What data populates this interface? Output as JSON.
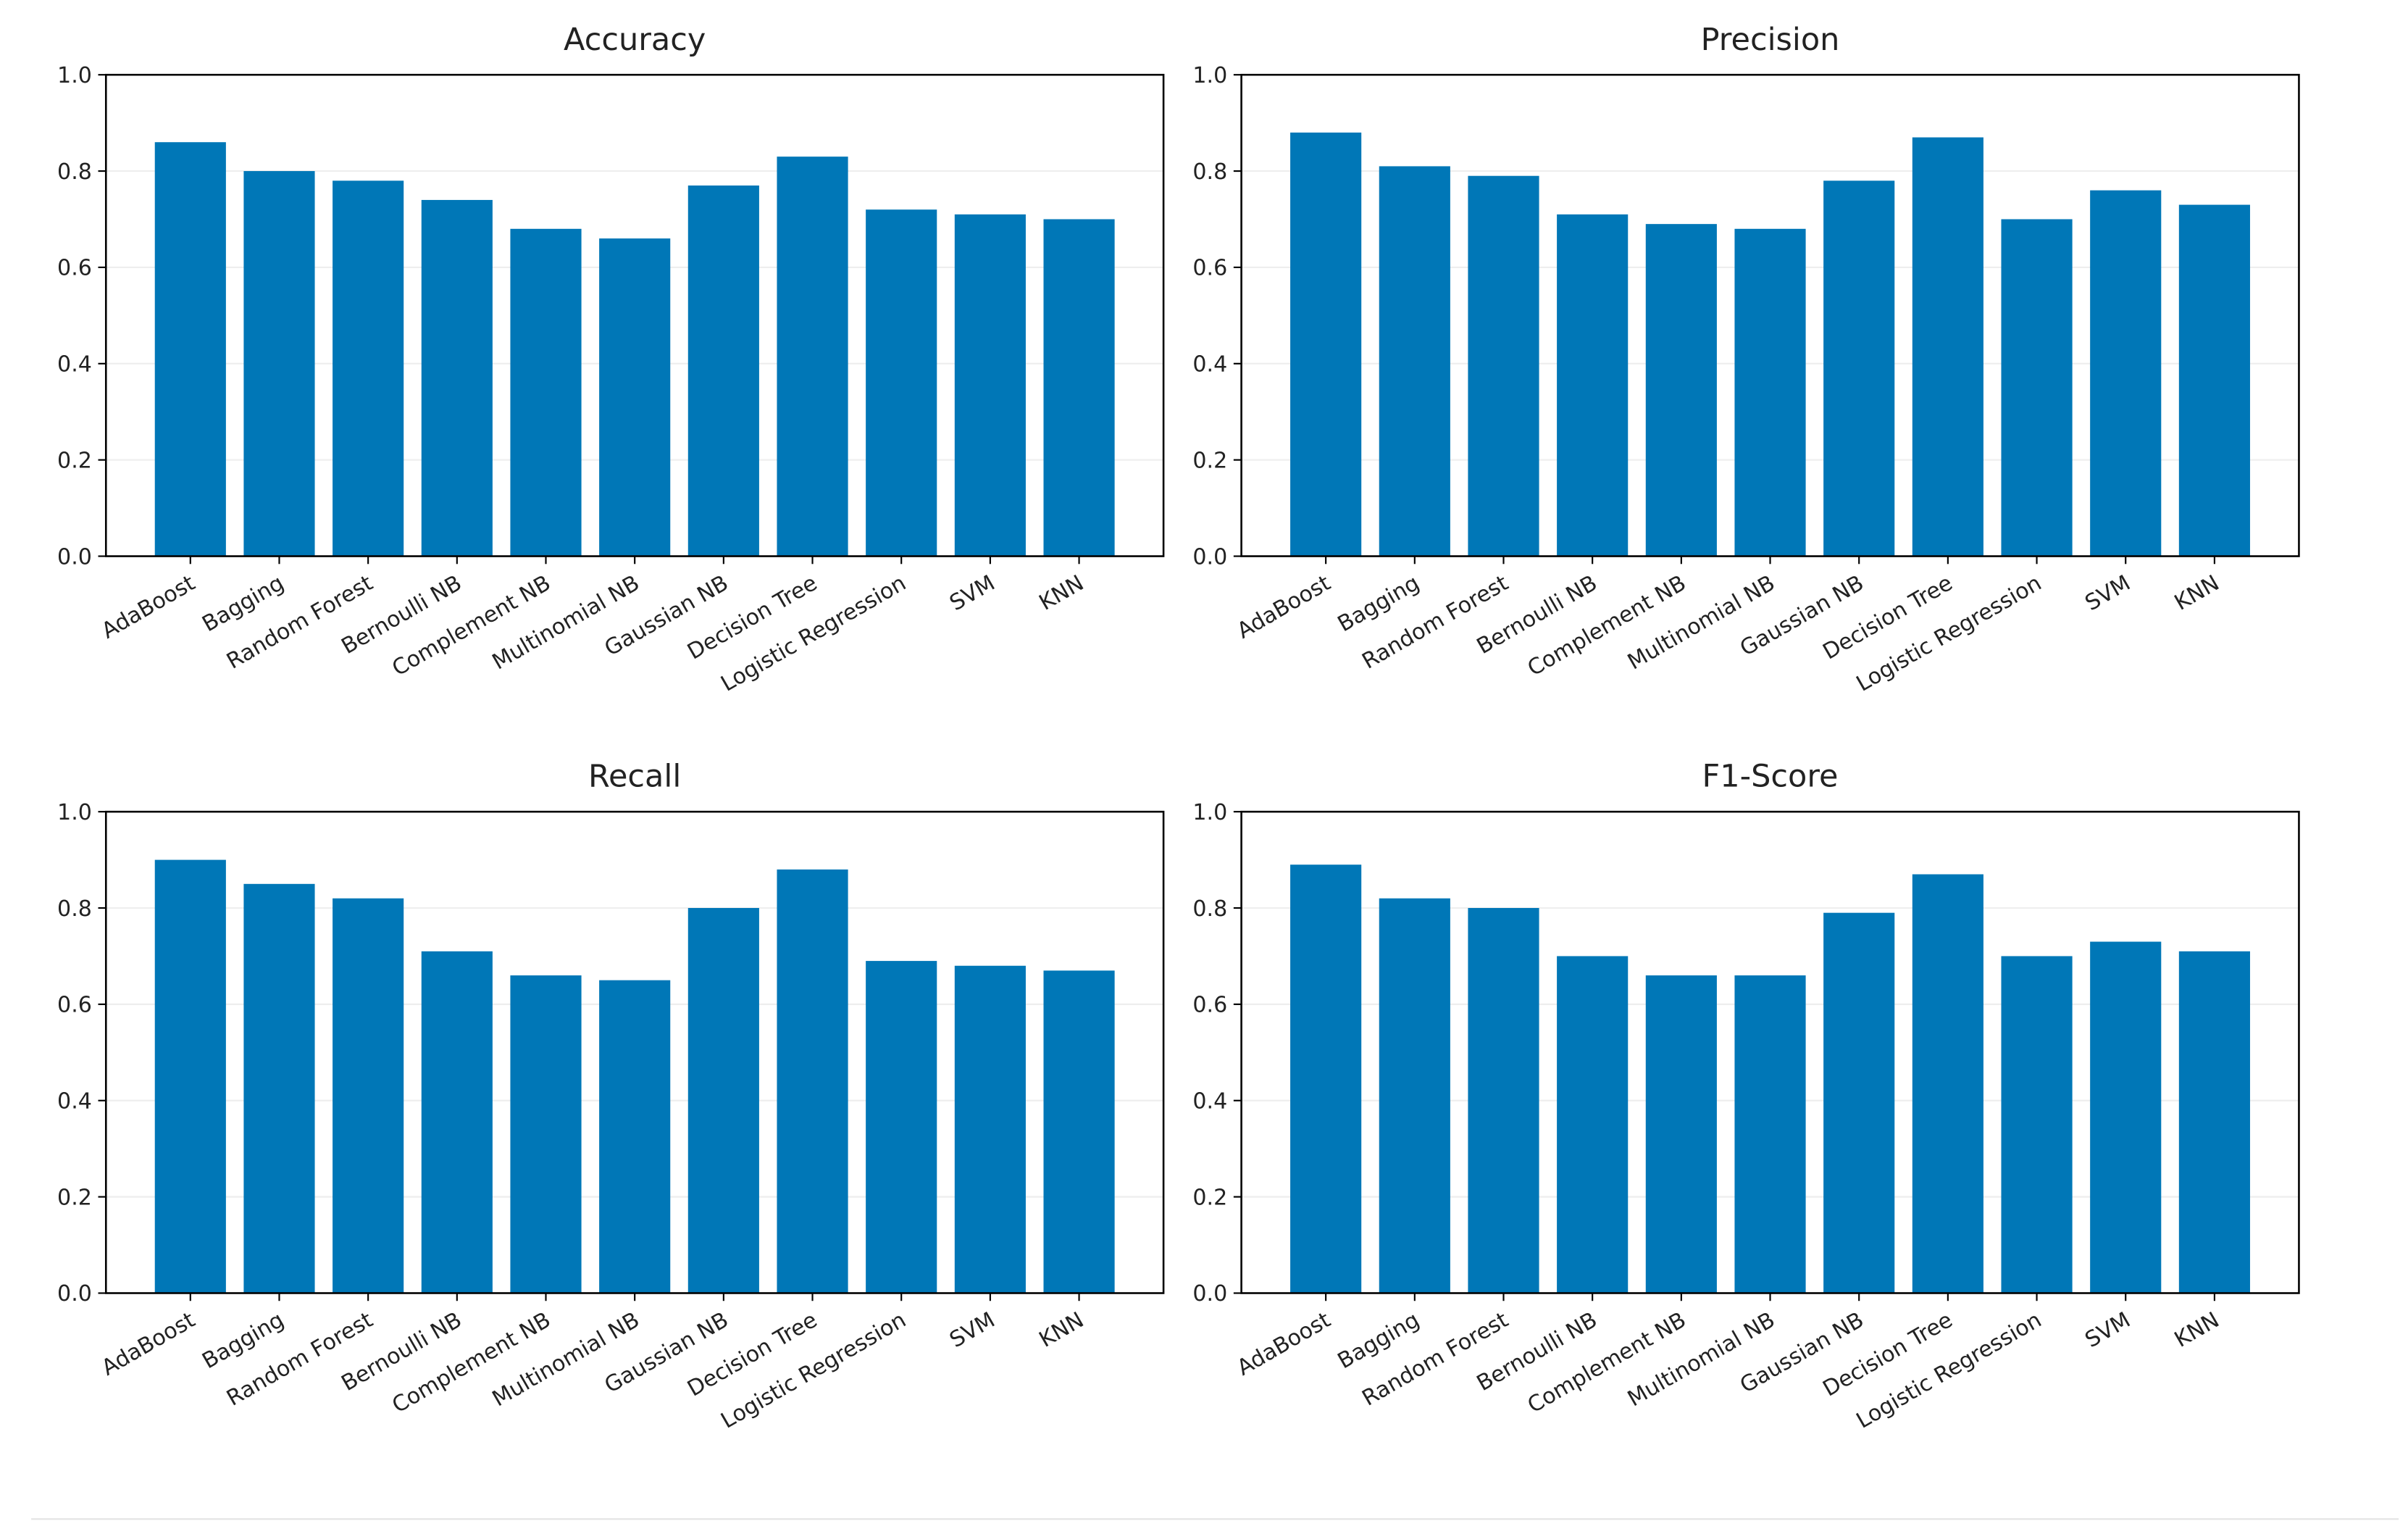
{
  "chart_data": [
    {
      "type": "bar",
      "title": "Accuracy",
      "color": "#0077b7",
      "grid": true,
      "categories": [
        "AdaBoost",
        "Bagging",
        "Random Forest",
        "Bernoulli NB",
        "Complement NB",
        "Multinomial NB",
        "Gaussian NB",
        "Decision Tree",
        "Logistic Regression",
        "SVM",
        "KNN"
      ],
      "values": [
        0.86,
        0.8,
        0.78,
        0.74,
        0.68,
        0.66,
        0.77,
        0.83,
        0.72,
        0.71,
        0.7
      ],
      "ylim": [
        0,
        1
      ],
      "yticks": [
        {
          "value": 0,
          "label": "0.0"
        },
        {
          "value": 0.2,
          "label": "0.2"
        },
        {
          "value": 0.4,
          "label": "0.4"
        },
        {
          "value": 0.6,
          "label": "0.6"
        },
        {
          "value": 0.8,
          "label": "0.8"
        },
        {
          "value": 1,
          "label": "1.0"
        }
      ]
    },
    {
      "type": "bar",
      "title": "Precision",
      "color": "#0077b7",
      "grid": true,
      "categories": [
        "AdaBoost",
        "Bagging",
        "Random Forest",
        "Bernoulli NB",
        "Complement NB",
        "Multinomial NB",
        "Gaussian NB",
        "Decision Tree",
        "Logistic Regression",
        "SVM",
        "KNN"
      ],
      "values": [
        0.88,
        0.81,
        0.79,
        0.71,
        0.69,
        0.68,
        0.78,
        0.87,
        0.7,
        0.76,
        0.73
      ],
      "ylim": [
        0,
        1
      ],
      "yticks": [
        {
          "value": 0,
          "label": "0.0"
        },
        {
          "value": 0.2,
          "label": "0.2"
        },
        {
          "value": 0.4,
          "label": "0.4"
        },
        {
          "value": 0.6,
          "label": "0.6"
        },
        {
          "value": 0.8,
          "label": "0.8"
        },
        {
          "value": 1,
          "label": "1.0"
        }
      ]
    },
    {
      "type": "bar",
      "title": "Recall",
      "color": "#0077b7",
      "grid": true,
      "categories": [
        "AdaBoost",
        "Bagging",
        "Random Forest",
        "Bernoulli NB",
        "Complement NB",
        "Multinomial NB",
        "Gaussian NB",
        "Decision Tree",
        "Logistic Regression",
        "SVM",
        "KNN"
      ],
      "values": [
        0.9,
        0.85,
        0.82,
        0.71,
        0.66,
        0.65,
        0.8,
        0.88,
        0.69,
        0.68,
        0.67
      ],
      "ylim": [
        0,
        1
      ],
      "yticks": [
        {
          "value": 0,
          "label": "0.0"
        },
        {
          "value": 0.2,
          "label": "0.2"
        },
        {
          "value": 0.4,
          "label": "0.4"
        },
        {
          "value": 0.6,
          "label": "0.6"
        },
        {
          "value": 0.8,
          "label": "0.8"
        },
        {
          "value": 1,
          "label": "1.0"
        }
      ]
    },
    {
      "type": "bar",
      "title": "F1-Score",
      "color": "#0077b7",
      "grid": true,
      "categories": [
        "AdaBoost",
        "Bagging",
        "Random Forest",
        "Bernoulli NB",
        "Complement NB",
        "Multinomial NB",
        "Gaussian NB",
        "Decision Tree",
        "Logistic Regression",
        "SVM",
        "KNN"
      ],
      "values": [
        0.89,
        0.82,
        0.8,
        0.7,
        0.66,
        0.66,
        0.79,
        0.87,
        0.7,
        0.73,
        0.71
      ],
      "ylim": [
        0,
        1
      ],
      "yticks": [
        {
          "value": 0,
          "label": "0.0"
        },
        {
          "value": 0.2,
          "label": "0.2"
        },
        {
          "value": 0.4,
          "label": "0.4"
        },
        {
          "value": 0.6,
          "label": "0.6"
        },
        {
          "value": 0.8,
          "label": "0.8"
        },
        {
          "value": 1,
          "label": "1.0"
        }
      ]
    }
  ]
}
